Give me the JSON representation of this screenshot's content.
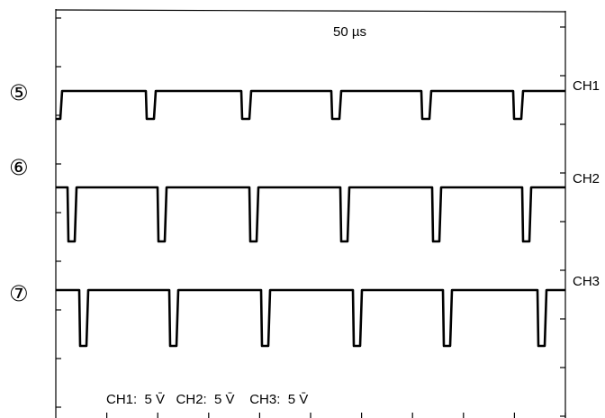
{
  "timebase": "50 µs",
  "markers": [
    "⑤",
    "⑥",
    "⑦"
  ],
  "channels": [
    "CH1",
    "CH2",
    "CH3"
  ],
  "settings": "CH1:  5 V̄   CH2:  5 V̄    CH3:  5 V̄"
}
